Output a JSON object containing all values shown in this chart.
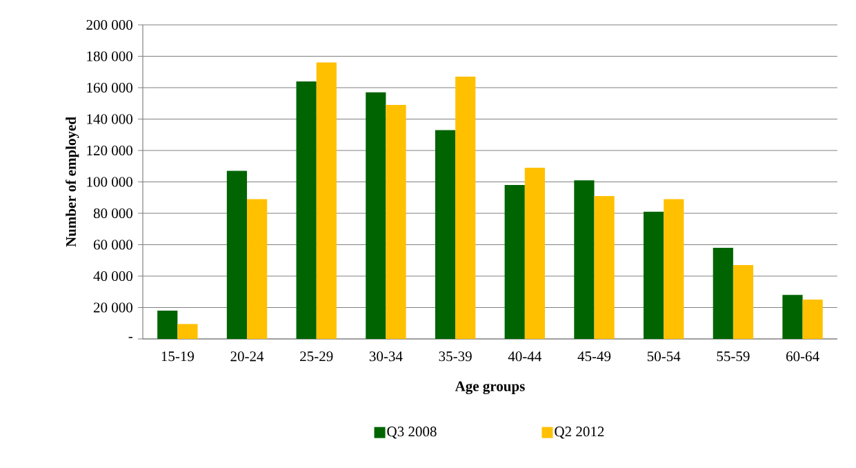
{
  "chart_data": {
    "type": "bar",
    "xlabel": "Age groups",
    "ylabel": "Number of employed",
    "categories": [
      "15-19",
      "20-24",
      "25-29",
      "30-34",
      "35-39",
      "40-44",
      "45-49",
      "50-54",
      "55-59",
      "60-64"
    ],
    "series": [
      {
        "name": "Q3 2008",
        "color": "#006400",
        "values": [
          18000,
          107000,
          164000,
          157000,
          133000,
          98000,
          101000,
          81000,
          58000,
          28000
        ]
      },
      {
        "name": "Q2 2012",
        "color": "#ffc000",
        "values": [
          9500,
          89000,
          176000,
          149000,
          167000,
          109000,
          91000,
          89000,
          47000,
          25000
        ]
      }
    ],
    "ylim": [
      0,
      200000
    ],
    "yticks": [
      {
        "value": 0,
        "label": "-"
      },
      {
        "value": 20000,
        "label": "20 000"
      },
      {
        "value": 40000,
        "label": "40 000"
      },
      {
        "value": 60000,
        "label": "60 000"
      },
      {
        "value": 80000,
        "label": "80 000"
      },
      {
        "value": 100000,
        "label": "100 000"
      },
      {
        "value": 120000,
        "label": "120 000"
      },
      {
        "value": 140000,
        "label": "140 000"
      },
      {
        "value": 160000,
        "label": "160 000"
      },
      {
        "value": 180000,
        "label": "180 000"
      },
      {
        "value": 200000,
        "label": "200 000"
      }
    ],
    "grid": "y",
    "legend": "bottom"
  }
}
